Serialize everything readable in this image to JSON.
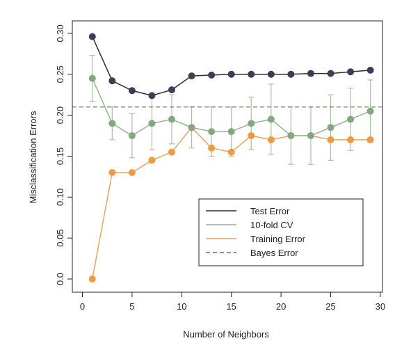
{
  "chart_data": {
    "type": "line",
    "title": "",
    "xlabel": "Number of Neighbors",
    "ylabel": "Misclassification Errors",
    "xlim": [
      0,
      30
    ],
    "ylim": [
      0.0,
      0.3
    ],
    "xticks": [
      "0",
      "5",
      "10",
      "15",
      "20",
      "25",
      "30"
    ],
    "yticks": [
      "0.0",
      "0.05",
      "0.10",
      "0.15",
      "0.20",
      "0.25",
      "0.30"
    ],
    "grid": false,
    "legend_position": "bottom-right",
    "x": [
      1,
      3,
      5,
      7,
      9,
      11,
      13,
      15,
      17,
      19,
      21,
      23,
      25,
      27,
      29
    ],
    "series": [
      {
        "name": "Test Error",
        "line_color": "#2b2b2b",
        "marker_color": "#3d3d55",
        "line_style": "solid",
        "values": [
          0.296,
          0.242,
          0.23,
          0.224,
          0.231,
          0.248,
          0.249,
          0.25,
          0.25,
          0.25,
          0.25,
          0.251,
          0.251,
          0.253,
          0.255
        ]
      },
      {
        "name": "10-fold CV",
        "line_color": "#93b68f",
        "marker_color": "#84a77f",
        "error_color": "#a9bfa6",
        "line_style": "solid",
        "values": [
          0.245,
          0.19,
          0.175,
          0.19,
          0.195,
          0.185,
          0.18,
          0.18,
          0.19,
          0.195,
          0.175,
          0.175,
          0.185,
          0.195,
          0.205
        ],
        "error": [
          0.028,
          0.02,
          0.027,
          0.032,
          0.03,
          0.025,
          0.03,
          0.03,
          0.032,
          0.043,
          0.035,
          0.035,
          0.04,
          0.038,
          0.038
        ]
      },
      {
        "name": "Training Error",
        "line_color": "#e8a462",
        "marker_color": "#f09a45",
        "line_style": "solid",
        "values": [
          0.0,
          0.13,
          0.13,
          0.145,
          0.155,
          0.185,
          0.16,
          0.155,
          0.175,
          0.17,
          0.175,
          0.175,
          0.17,
          0.17,
          0.17
        ]
      },
      {
        "name": "Bayes Error",
        "line_color": "#5a7a5a",
        "line_style": "dashed",
        "constant": 0.21
      }
    ]
  }
}
